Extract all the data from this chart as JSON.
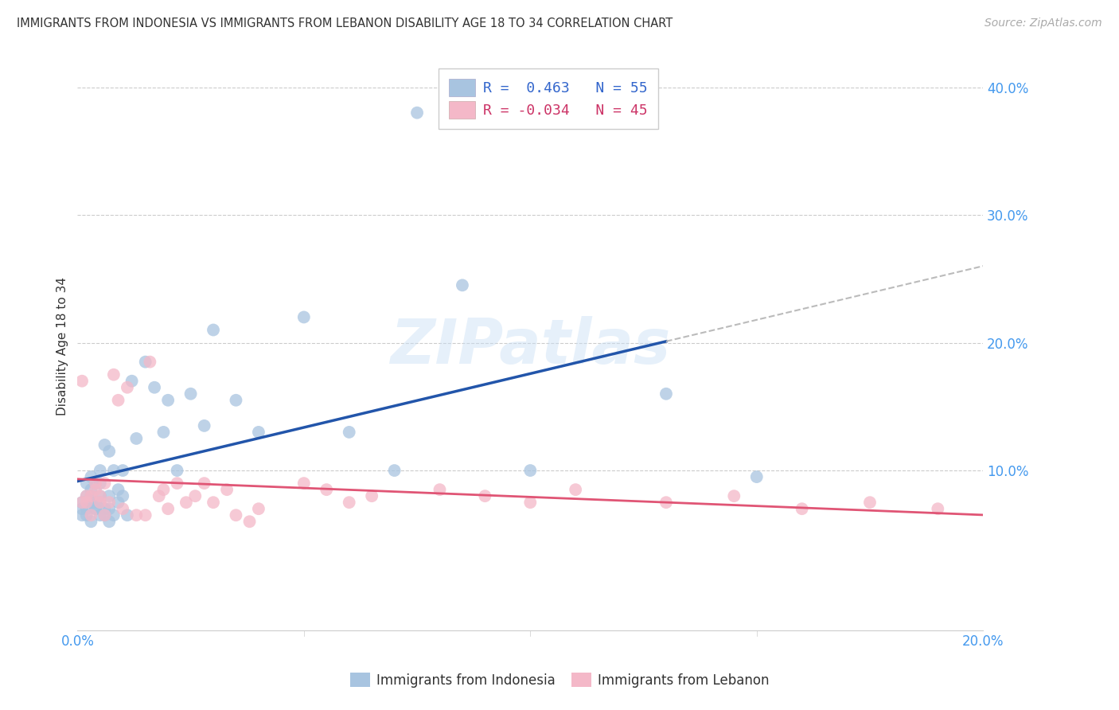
{
  "title": "IMMIGRANTS FROM INDONESIA VS IMMIGRANTS FROM LEBANON DISABILITY AGE 18 TO 34 CORRELATION CHART",
  "source": "Source: ZipAtlas.com",
  "ylabel": "Disability Age 18 to 34",
  "xlim": [
    0.0,
    0.2
  ],
  "ylim": [
    -0.025,
    0.42
  ],
  "indonesia_color": "#a8c4e0",
  "lebanon_color": "#f4b8c8",
  "indonesia_line_color": "#2255aa",
  "lebanon_line_color": "#e05575",
  "dash_color": "#bbbbbb",
  "watermark": "ZIPatlas",
  "tick_label_color": "#4499ee",
  "grid_color": "#cccccc",
  "indonesia_x": [
    0.001,
    0.001,
    0.001,
    0.002,
    0.002,
    0.002,
    0.002,
    0.003,
    0.003,
    0.003,
    0.003,
    0.003,
    0.004,
    0.004,
    0.004,
    0.004,
    0.005,
    0.005,
    0.005,
    0.005,
    0.005,
    0.006,
    0.006,
    0.006,
    0.007,
    0.007,
    0.007,
    0.007,
    0.008,
    0.008,
    0.009,
    0.009,
    0.01,
    0.01,
    0.011,
    0.012,
    0.013,
    0.015,
    0.017,
    0.019,
    0.02,
    0.022,
    0.025,
    0.028,
    0.03,
    0.035,
    0.04,
    0.05,
    0.06,
    0.07,
    0.075,
    0.085,
    0.1,
    0.13,
    0.15
  ],
  "indonesia_y": [
    0.07,
    0.075,
    0.065,
    0.08,
    0.07,
    0.065,
    0.09,
    0.075,
    0.06,
    0.08,
    0.085,
    0.095,
    0.07,
    0.075,
    0.09,
    0.07,
    0.065,
    0.08,
    0.075,
    0.09,
    0.1,
    0.07,
    0.065,
    0.12,
    0.06,
    0.07,
    0.08,
    0.115,
    0.065,
    0.1,
    0.075,
    0.085,
    0.08,
    0.1,
    0.065,
    0.17,
    0.125,
    0.185,
    0.165,
    0.13,
    0.155,
    0.1,
    0.16,
    0.135,
    0.21,
    0.155,
    0.13,
    0.22,
    0.13,
    0.1,
    0.38,
    0.245,
    0.1,
    0.16,
    0.095
  ],
  "lebanon_x": [
    0.001,
    0.001,
    0.002,
    0.002,
    0.003,
    0.003,
    0.004,
    0.004,
    0.005,
    0.005,
    0.006,
    0.006,
    0.007,
    0.008,
    0.009,
    0.01,
    0.011,
    0.013,
    0.015,
    0.016,
    0.018,
    0.019,
    0.02,
    0.022,
    0.024,
    0.026,
    0.028,
    0.03,
    0.033,
    0.035,
    0.038,
    0.04,
    0.05,
    0.055,
    0.06,
    0.065,
    0.08,
    0.09,
    0.1,
    0.11,
    0.13,
    0.145,
    0.16,
    0.175,
    0.19
  ],
  "lebanon_y": [
    0.17,
    0.075,
    0.08,
    0.075,
    0.08,
    0.065,
    0.085,
    0.09,
    0.075,
    0.08,
    0.065,
    0.09,
    0.075,
    0.175,
    0.155,
    0.07,
    0.165,
    0.065,
    0.065,
    0.185,
    0.08,
    0.085,
    0.07,
    0.09,
    0.075,
    0.08,
    0.09,
    0.075,
    0.085,
    0.065,
    0.06,
    0.07,
    0.09,
    0.085,
    0.075,
    0.08,
    0.085,
    0.08,
    0.075,
    0.085,
    0.075,
    0.08,
    0.07,
    0.075,
    0.07
  ]
}
